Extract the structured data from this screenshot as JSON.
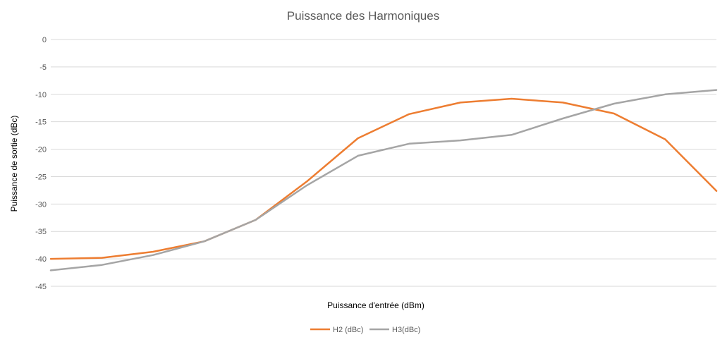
{
  "chart_data": {
    "type": "line",
    "title": "Puissance des Harmoniques",
    "xlabel": "Puissance d'entrée (dBm)",
    "ylabel": "Puissance de sortie (dBc)",
    "ylim": [
      -45,
      0
    ],
    "yticks": [
      0,
      -5,
      -10,
      -15,
      -20,
      -25,
      -30,
      -35,
      -40,
      -45
    ],
    "ytick_labels": [
      "0",
      "-5",
      "-10",
      "-15",
      "-20",
      "-25",
      "-30",
      "-35",
      "-40",
      "-45"
    ],
    "x": [
      1,
      2,
      3,
      4,
      5,
      6,
      7,
      8,
      9,
      10,
      11,
      12,
      13,
      14
    ],
    "grid": true,
    "legend": "bottom",
    "series": [
      {
        "name": "H2 (dBc)",
        "color": "#ed7d31",
        "values": [
          -40.0,
          -39.8,
          -38.7,
          -36.8,
          -32.9,
          -25.9,
          -18.0,
          -13.6,
          -11.5,
          -10.8,
          -11.5,
          -13.5,
          -18.2,
          -27.6
        ]
      },
      {
        "name": "H3(dBc)",
        "color": "#a5a5a5",
        "values": [
          -42.1,
          -41.1,
          -39.3,
          -36.8,
          -32.9,
          -26.6,
          -21.2,
          -19.0,
          -18.4,
          -17.4,
          -14.4,
          -11.7,
          -10.0,
          -9.2
        ]
      }
    ]
  }
}
